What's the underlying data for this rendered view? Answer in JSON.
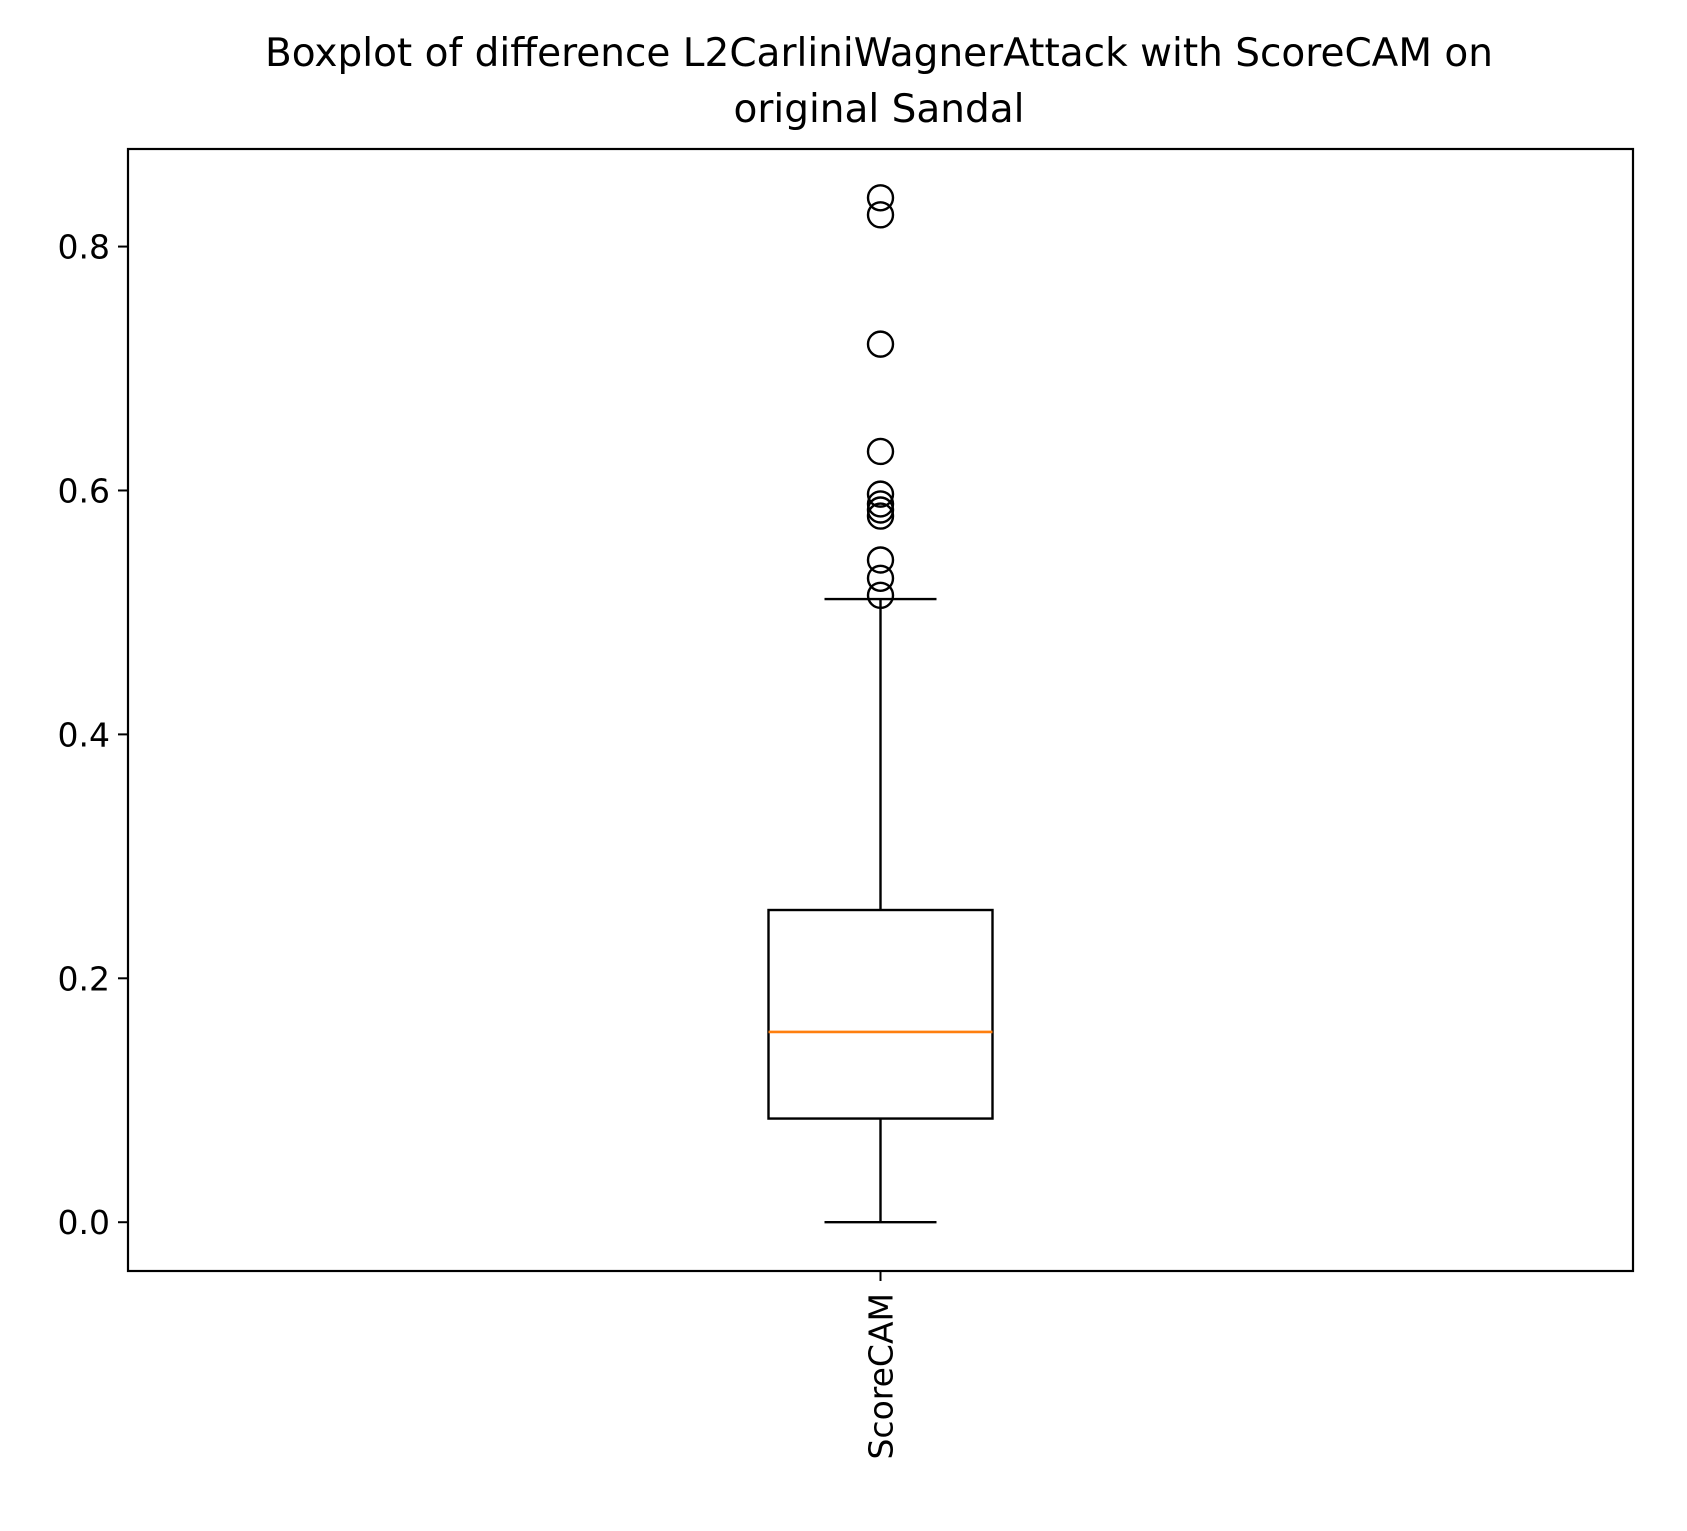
{
  "chart_data": {
    "type": "boxplot",
    "title_lines": [
      "Boxplot of difference L2CarliniWagnerAttack with ScoreCAM on",
      "original Sandal"
    ],
    "xlabel": "",
    "ylabel": "",
    "ylim": [
      -0.04,
      0.88
    ],
    "yticks": [
      {
        "value": 0.0,
        "label": "0.0"
      },
      {
        "value": 0.2,
        "label": "0.2"
      },
      {
        "value": 0.4,
        "label": "0.4"
      },
      {
        "value": 0.6,
        "label": "0.6"
      },
      {
        "value": 0.8,
        "label": "0.8"
      }
    ],
    "grid": false,
    "categories": [
      "ScoreCAM"
    ],
    "boxes": [
      {
        "category": "ScoreCAM",
        "whisker_low": 0.0,
        "q1": 0.085,
        "median": 0.156,
        "q3": 0.256,
        "whisker_high": 0.511,
        "outliers": [
          0.514,
          0.528,
          0.543,
          0.579,
          0.584,
          0.589,
          0.597,
          0.632,
          0.72,
          0.826,
          0.84
        ]
      }
    ],
    "colors": {
      "box": "#000000",
      "median": "#ff7f0e",
      "outlier": "#000000"
    }
  }
}
